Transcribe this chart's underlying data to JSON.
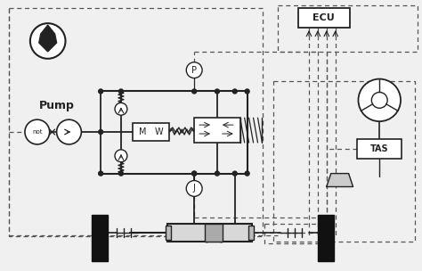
{
  "bg": "#f0f0f0",
  "lc": "#222222",
  "dc": "#555555",
  "bx": "#ffffff",
  "fig_w": 4.74,
  "fig_h": 3.04,
  "dpi": 100,
  "labels": {
    "ECU": "ECU",
    "Pump": "Pump",
    "TAS": "TAS",
    "P": "P",
    "J": "J",
    "not": "not"
  }
}
